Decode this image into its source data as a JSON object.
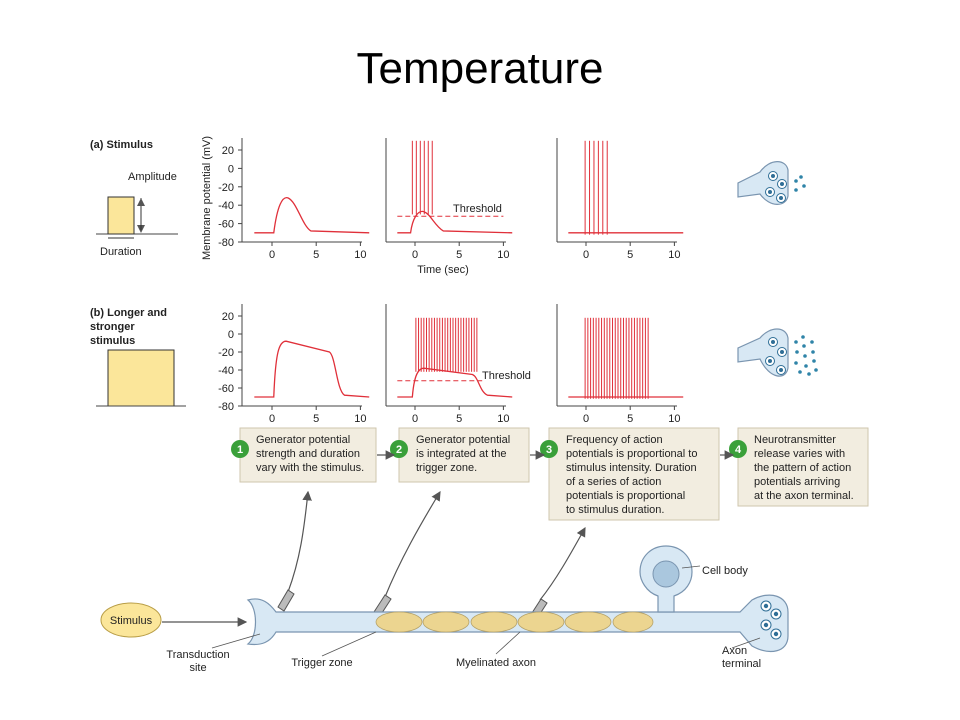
{
  "slide": {
    "title": "Temperature"
  },
  "panels": {
    "a_label": "(a) Stimulus",
    "b_label_lines": [
      "(b) Longer and",
      "stronger",
      "stimulus"
    ],
    "amplitude": "Amplitude",
    "duration": "Duration",
    "ylabel": "Membrane potential (mV)",
    "xlabel": "Time (sec)",
    "threshold": "Threshold",
    "yticks": [
      "20",
      "0",
      "-20",
      "-40",
      "-60",
      "-80"
    ],
    "xticks": [
      "0",
      "5",
      "10"
    ]
  },
  "steps": [
    {
      "num": "1",
      "lines": [
        "Generator potential",
        "strength and duration",
        "vary with the stimulus."
      ]
    },
    {
      "num": "2",
      "lines": [
        "Generator potential",
        "is integrated at the",
        "trigger zone."
      ]
    },
    {
      "num": "3",
      "lines": [
        "Frequency of action",
        "potentials is proportional to",
        "stimulus intensity. Duration",
        "of a series of action",
        "potentials is proportional",
        "to stimulus duration."
      ]
    },
    {
      "num": "4",
      "lines": [
        "Neurotransmitter",
        "release varies with",
        "the pattern of action",
        "potentials arriving",
        "at the axon terminal."
      ]
    }
  ],
  "neuron": {
    "stimulus": "Stimulus",
    "transduction": [
      "Transduction",
      "site"
    ],
    "trigger_zone": "Trigger zone",
    "myelinated_axon": "Myelinated axon",
    "cell_body": "Cell body",
    "axon_terminal": [
      "Axon",
      "terminal"
    ]
  },
  "colors": {
    "trace": "#e0303a",
    "stimulus_fill": "#fbe69a",
    "step_box": "#f2ede0",
    "step_number": "#3aa03a",
    "neuron": "#d8e8f4",
    "myelin": "#f3dfa6"
  }
}
